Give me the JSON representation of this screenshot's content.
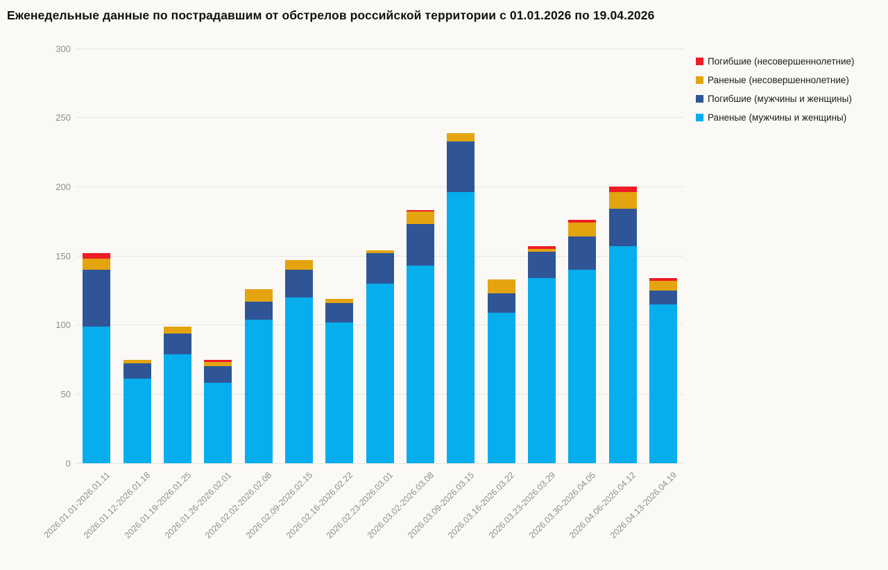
{
  "title": "Еженедельные данные по пострадавшим от обстрелов российской территории с 01.01.2026 по 19.04.2026",
  "colors": {
    "background": "#fbf9f6",
    "gridline": "#e7e5e0",
    "axis_text": "#8d8d8d",
    "red": "#ee1c25",
    "yellow": "#e4a410",
    "darkblue": "#2f5597",
    "cyan": "#06aeee"
  },
  "chart_data": {
    "type": "bar",
    "stacked": true,
    "title": "Еженедельные данные по пострадавшим от обстрелов российской территории с 01.01.2026 по 19.04.2026",
    "grid": true,
    "legend_position": "top-right",
    "ylim": [
      0,
      300
    ],
    "y_ticks": [
      0,
      50,
      100,
      150,
      200,
      250,
      300
    ],
    "categories": [
      "2026.01.01-2026.01.11",
      "2026.01.12-2026.01.18",
      "2026.01.19-2026.01.25",
      "2026.01.26-2026.02.01",
      "2026.02.02-2026.02.08",
      "2026.02.09-2026.02.15",
      "2026.02.16-2026.02.22",
      "2026.02.23-2026.03.01",
      "2026.03.02-2026.03.08",
      "2026.03.09-2026.03.15",
      "2026.03.16-2026.03.22",
      "2026.03.23-2026.03.29",
      "2026.03.30-2026.04.05",
      "2026.04.06-2026.04.12",
      "2026.04.13-2026.04.19"
    ],
    "series": [
      {
        "name": "Погибшие (несовершеннолетние)",
        "color_key": "red",
        "values": [
          4,
          0,
          0,
          2,
          0,
          0,
          0,
          0,
          1,
          0,
          0,
          2,
          2,
          4,
          2
        ]
      },
      {
        "name": "Раненые (несовершеннолетние)",
        "color_key": "yellow",
        "values": [
          8,
          3,
          5,
          3,
          9,
          7,
          3,
          2,
          9,
          6,
          10,
          2,
          10,
          12,
          7
        ]
      },
      {
        "name": "Погибшие (мужчины и женщины)",
        "color_key": "darkblue",
        "values": [
          41,
          11,
          15,
          12,
          13,
          20,
          14,
          22,
          30,
          37,
          14,
          19,
          24,
          27,
          10
        ]
      },
      {
        "name": "Раненые (мужчины и женщины)",
        "color_key": "cyan",
        "values": [
          99,
          61,
          79,
          58,
          104,
          120,
          102,
          130,
          143,
          196,
          109,
          134,
          140,
          157,
          115
        ]
      }
    ]
  }
}
